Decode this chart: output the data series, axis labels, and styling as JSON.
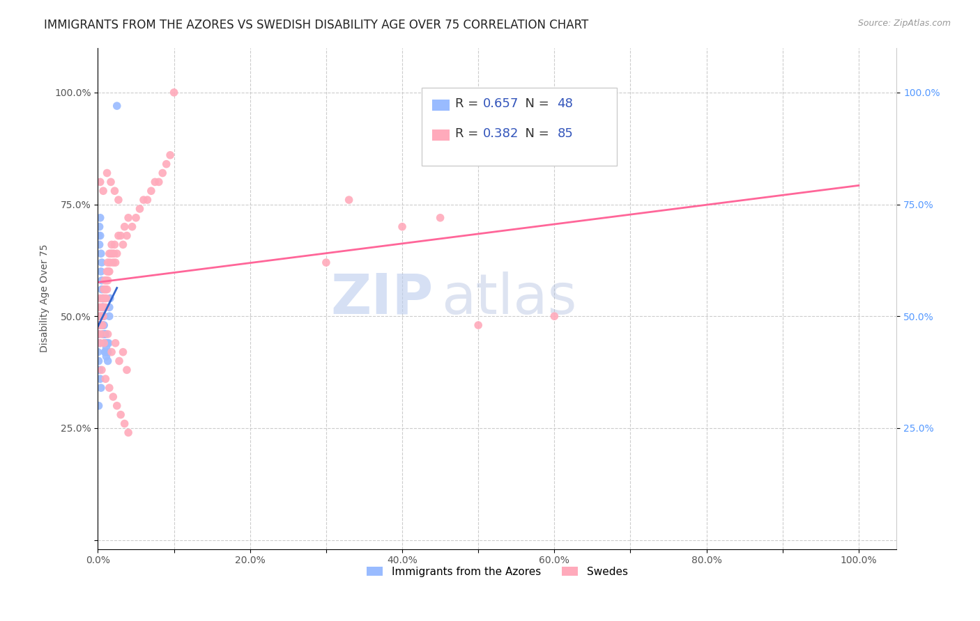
{
  "title": "IMMIGRANTS FROM THE AZORES VS SWEDISH DISABILITY AGE OVER 75 CORRELATION CHART",
  "source": "Source: ZipAtlas.com",
  "ylabel": "Disability Age Over 75",
  "legend_blue_label": "Immigrants from the Azores",
  "legend_pink_label": "Swedes",
  "R_blue": 0.657,
  "N_blue": 48,
  "R_pink": 0.382,
  "N_pink": 85,
  "watermark_zip": "ZIP",
  "watermark_atlas": "atlas",
  "blue_scatter_x": [
    0.001,
    0.002,
    0.002,
    0.003,
    0.003,
    0.004,
    0.004,
    0.005,
    0.005,
    0.005,
    0.006,
    0.006,
    0.006,
    0.007,
    0.007,
    0.007,
    0.008,
    0.008,
    0.008,
    0.009,
    0.009,
    0.009,
    0.01,
    0.01,
    0.01,
    0.011,
    0.011,
    0.012,
    0.012,
    0.013,
    0.013,
    0.014,
    0.015,
    0.015,
    0.016,
    0.001,
    0.002,
    0.003,
    0.004,
    0.001,
    0.001,
    0.002,
    0.002,
    0.003,
    0.0,
    0.0,
    0.0,
    0.025
  ],
  "blue_scatter_y": [
    0.68,
    0.7,
    0.66,
    0.72,
    0.68,
    0.64,
    0.6,
    0.58,
    0.62,
    0.56,
    0.54,
    0.52,
    0.5,
    0.48,
    0.52,
    0.46,
    0.5,
    0.46,
    0.48,
    0.44,
    0.46,
    0.42,
    0.44,
    0.46,
    0.42,
    0.43,
    0.41,
    0.44,
    0.42,
    0.4,
    0.42,
    0.44,
    0.5,
    0.52,
    0.54,
    0.4,
    0.38,
    0.36,
    0.34,
    0.3,
    0.46,
    0.44,
    0.48,
    0.5,
    0.48,
    0.46,
    0.42,
    0.97
  ],
  "pink_scatter_x": [
    0.0,
    0.001,
    0.001,
    0.002,
    0.002,
    0.003,
    0.003,
    0.004,
    0.004,
    0.005,
    0.005,
    0.006,
    0.006,
    0.007,
    0.007,
    0.008,
    0.008,
    0.009,
    0.009,
    0.01,
    0.01,
    0.011,
    0.011,
    0.012,
    0.012,
    0.013,
    0.013,
    0.014,
    0.015,
    0.015,
    0.016,
    0.017,
    0.018,
    0.019,
    0.02,
    0.021,
    0.022,
    0.023,
    0.025,
    0.027,
    0.03,
    0.033,
    0.035,
    0.038,
    0.04,
    0.045,
    0.05,
    0.055,
    0.06,
    0.065,
    0.07,
    0.075,
    0.08,
    0.085,
    0.09,
    0.095,
    0.1,
    0.005,
    0.01,
    0.015,
    0.02,
    0.025,
    0.03,
    0.035,
    0.04,
    0.6,
    0.003,
    0.008,
    0.013,
    0.018,
    0.023,
    0.028,
    0.033,
    0.038,
    0.3,
    0.4,
    0.5,
    0.003,
    0.007,
    0.012,
    0.017,
    0.022,
    0.027,
    0.33,
    0.45
  ],
  "pink_scatter_y": [
    0.48,
    0.5,
    0.46,
    0.52,
    0.48,
    0.54,
    0.5,
    0.52,
    0.48,
    0.5,
    0.46,
    0.52,
    0.48,
    0.54,
    0.5,
    0.56,
    0.52,
    0.58,
    0.54,
    0.56,
    0.52,
    0.58,
    0.54,
    0.6,
    0.56,
    0.62,
    0.58,
    0.6,
    0.64,
    0.6,
    0.62,
    0.64,
    0.66,
    0.64,
    0.62,
    0.64,
    0.66,
    0.62,
    0.64,
    0.68,
    0.68,
    0.66,
    0.7,
    0.68,
    0.72,
    0.7,
    0.72,
    0.74,
    0.76,
    0.76,
    0.78,
    0.8,
    0.8,
    0.82,
    0.84,
    0.86,
    1.0,
    0.38,
    0.36,
    0.34,
    0.32,
    0.3,
    0.28,
    0.26,
    0.24,
    0.5,
    0.44,
    0.44,
    0.46,
    0.42,
    0.44,
    0.4,
    0.42,
    0.38,
    0.62,
    0.7,
    0.48,
    0.8,
    0.78,
    0.82,
    0.8,
    0.78,
    0.76,
    0.76,
    0.72
  ],
  "xlim": [
    0.0,
    1.05
  ],
  "ylim": [
    -0.02,
    1.1
  ],
  "xtick_vals": [
    0.0,
    0.1,
    0.2,
    0.3,
    0.4,
    0.5,
    0.6,
    0.7,
    0.8,
    0.9,
    1.0
  ],
  "xtick_labels": [
    "0.0%",
    "",
    "20.0%",
    "",
    "40.0%",
    "",
    "60.0%",
    "",
    "80.0%",
    "",
    "100.0%"
  ],
  "ytick_vals": [
    0.0,
    0.25,
    0.5,
    0.75,
    1.0
  ],
  "ytick_labels": [
    "",
    "25.0%",
    "50.0%",
    "75.0%",
    "100.0%"
  ],
  "right_ytick_labels": [
    "100.0%",
    "75.0%",
    "50.0%",
    "25.0%"
  ],
  "blue_color": "#99bbff",
  "pink_color": "#ffaabb",
  "blue_line_color": "#3366cc",
  "pink_line_color": "#ff6699",
  "title_color": "#222222",
  "source_color": "#999999",
  "tick_color": "#555555",
  "right_tick_color": "#5599ff",
  "grid_color": "#cccccc",
  "watermark_zip_color": "#bbccee",
  "watermark_atlas_color": "#aabbdd",
  "title_fontsize": 12,
  "axis_label_fontsize": 10,
  "tick_fontsize": 10,
  "watermark_fontsize": 58,
  "legend_fontsize": 13
}
